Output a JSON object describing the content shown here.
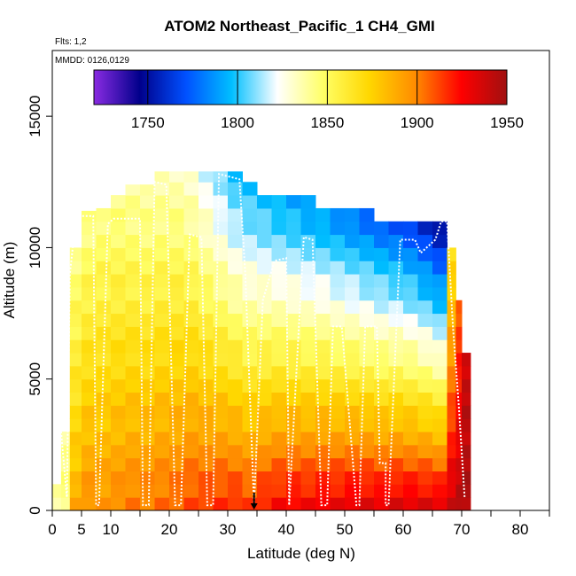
{
  "chart_data": {
    "type": "heatmap",
    "title": "ATOM2 Northeast_Pacific_1 CH4_GMI",
    "flights_label": "Flts: 1,2",
    "date_label": "MMDD: 0126,0129",
    "xlabel": "Latitude (deg N)",
    "ylabel": "Altitude (m)",
    "xlim": [
      0,
      85
    ],
    "ylim": [
      0,
      17500
    ],
    "xticks": [
      0,
      5,
      10,
      20,
      30,
      40,
      50,
      60,
      70,
      80
    ],
    "xtick_labels": [
      "0",
      "5",
      "10",
      "20",
      "30",
      "40",
      "50",
      "60",
      "70",
      "80"
    ],
    "xticks_minor": [
      15,
      25,
      35,
      45,
      55,
      65,
      75,
      85
    ],
    "yticks": [
      0,
      5000,
      10000,
      15000
    ],
    "ytick_labels": [
      "0",
      "5000",
      "10000",
      "15000"
    ],
    "colorbar": {
      "min": 1720,
      "max": 1950,
      "ticks": [
        1750,
        1800,
        1850,
        1900,
        1950
      ],
      "tick_labels": [
        "1750",
        "1800",
        "1850",
        "1900",
        "1950"
      ],
      "colors": [
        "#8a2be2",
        "#00008b",
        "#0050ff",
        "#00bfff",
        "#ffffff",
        "#ffff66",
        "#ffd700",
        "#ff8c00",
        "#ff0000",
        "#a01010"
      ]
    },
    "marker_latitude": 34.5,
    "columns": [
      {
        "x0": 0.0,
        "x1": 1.5,
        "ymax": 1000,
        "base": 1840,
        "top": 1848
      },
      {
        "x0": 1.5,
        "x1": 3.0,
        "ymax": 3000,
        "base": 1845,
        "top": 1830
      },
      {
        "x0": 3.0,
        "x1": 5.0,
        "ymax": 10000,
        "base": 1890,
        "top": 1830
      },
      {
        "x0": 5.0,
        "x1": 7.5,
        "ymax": 11400,
        "base": 1900,
        "top": 1835
      },
      {
        "x0": 7.5,
        "x1": 10.0,
        "ymax": 11500,
        "base": 1898,
        "top": 1838
      },
      {
        "x0": 10.0,
        "x1": 12.5,
        "ymax": 12000,
        "base": 1902,
        "top": 1838
      },
      {
        "x0": 12.5,
        "x1": 15.0,
        "ymax": 12400,
        "base": 1905,
        "top": 1836
      },
      {
        "x0": 15.0,
        "x1": 17.5,
        "ymax": 12400,
        "base": 1905,
        "top": 1835
      },
      {
        "x0": 17.5,
        "x1": 20.0,
        "ymax": 12900,
        "base": 1908,
        "top": 1835
      },
      {
        "x0": 20.0,
        "x1": 22.5,
        "ymax": 12900,
        "base": 1910,
        "top": 1835
      },
      {
        "x0": 22.5,
        "x1": 25.0,
        "ymax": 12900,
        "base": 1915,
        "top": 1830
      },
      {
        "x0": 25.0,
        "x1": 27.5,
        "ymax": 12900,
        "base": 1918,
        "top": 1820
      },
      {
        "x0": 27.5,
        "x1": 30.0,
        "ymax": 12900,
        "base": 1920,
        "top": 1810
      },
      {
        "x0": 30.0,
        "x1": 32.5,
        "ymax": 12900,
        "base": 1922,
        "top": 1800
      },
      {
        "x0": 32.5,
        "x1": 35.0,
        "ymax": 12500,
        "base": 1918,
        "top": 1795
      },
      {
        "x0": 35.0,
        "x1": 37.5,
        "ymax": 12000,
        "base": 1925,
        "top": 1790
      },
      {
        "x0": 37.5,
        "x1": 40.0,
        "ymax": 12000,
        "base": 1930,
        "top": 1785
      },
      {
        "x0": 40.0,
        "x1": 42.5,
        "ymax": 12000,
        "base": 1932,
        "top": 1782
      },
      {
        "x0": 42.5,
        "x1": 45.0,
        "ymax": 12000,
        "base": 1932,
        "top": 1778
      },
      {
        "x0": 45.0,
        "x1": 47.5,
        "ymax": 11500,
        "base": 1935,
        "top": 1775
      },
      {
        "x0": 47.5,
        "x1": 50.0,
        "ymax": 11500,
        "base": 1935,
        "top": 1770
      },
      {
        "x0": 50.0,
        "x1": 52.5,
        "ymax": 11500,
        "base": 1938,
        "top": 1765
      },
      {
        "x0": 52.5,
        "x1": 55.0,
        "ymax": 11500,
        "base": 1938,
        "top": 1760
      },
      {
        "x0": 55.0,
        "x1": 57.5,
        "ymax": 11000,
        "base": 1938,
        "top": 1755
      },
      {
        "x0": 57.5,
        "x1": 60.0,
        "ymax": 11000,
        "base": 1940,
        "top": 1750
      },
      {
        "x0": 60.0,
        "x1": 62.5,
        "ymax": 11000,
        "base": 1940,
        "top": 1745
      },
      {
        "x0": 62.5,
        "x1": 65.0,
        "ymax": 11000,
        "base": 1940,
        "top": 1735
      },
      {
        "x0": 65.0,
        "x1": 67.5,
        "ymax": 11000,
        "base": 1940,
        "top": 1725
      },
      {
        "x0": 67.5,
        "x1": 69.0,
        "ymax": 10000,
        "base": 1942,
        "top": 1850
      },
      {
        "x0": 69.0,
        "x1": 70.0,
        "ymax": 8000,
        "base": 1945,
        "top": 1890
      },
      {
        "x0": 70.0,
        "x1": 71.5,
        "ymax": 6000,
        "base": 1948,
        "top": 1930
      }
    ],
    "flight_track": [
      [
        1.5,
        3000
      ],
      [
        2.5,
        500
      ],
      [
        3.0,
        9000
      ],
      [
        4.0,
        11000
      ],
      [
        5.0,
        11200
      ],
      [
        7.0,
        11200
      ],
      [
        7.5,
        200
      ],
      [
        8.0,
        200
      ],
      [
        9.5,
        10900
      ],
      [
        10.5,
        11100
      ],
      [
        15.0,
        11100
      ],
      [
        15.5,
        200
      ],
      [
        16.5,
        200
      ],
      [
        17.5,
        12500
      ],
      [
        19.5,
        12400
      ],
      [
        21.0,
        200
      ],
      [
        22.0,
        200
      ],
      [
        23.5,
        10500
      ],
      [
        25.5,
        10400
      ],
      [
        26.5,
        200
      ],
      [
        27.5,
        200
      ],
      [
        28.5,
        12800
      ],
      [
        32.0,
        12600
      ],
      [
        33.0,
        9000
      ],
      [
        34.5,
        200
      ],
      [
        36.0,
        8000
      ],
      [
        38.0,
        9500
      ],
      [
        40.0,
        9600
      ],
      [
        40.5,
        200
      ],
      [
        43.0,
        10400
      ],
      [
        44.5,
        10300
      ],
      [
        46.0,
        200
      ],
      [
        47.0,
        200
      ],
      [
        48.0,
        7000
      ],
      [
        49.5,
        7000
      ],
      [
        52.0,
        200
      ],
      [
        52.5,
        200
      ],
      [
        53.5,
        7000
      ],
      [
        55.5,
        7000
      ],
      [
        56.0,
        1800
      ],
      [
        57.0,
        1800
      ],
      [
        57.0,
        200
      ],
      [
        57.5,
        200
      ],
      [
        59.5,
        10300
      ],
      [
        62.0,
        10300
      ],
      [
        63.0,
        9800
      ],
      [
        65.5,
        10300
      ],
      [
        66.5,
        11000
      ],
      [
        67.5,
        11000
      ],
      [
        68.5,
        7000
      ],
      [
        69.5,
        4000
      ],
      [
        70.5,
        500
      ]
    ]
  }
}
